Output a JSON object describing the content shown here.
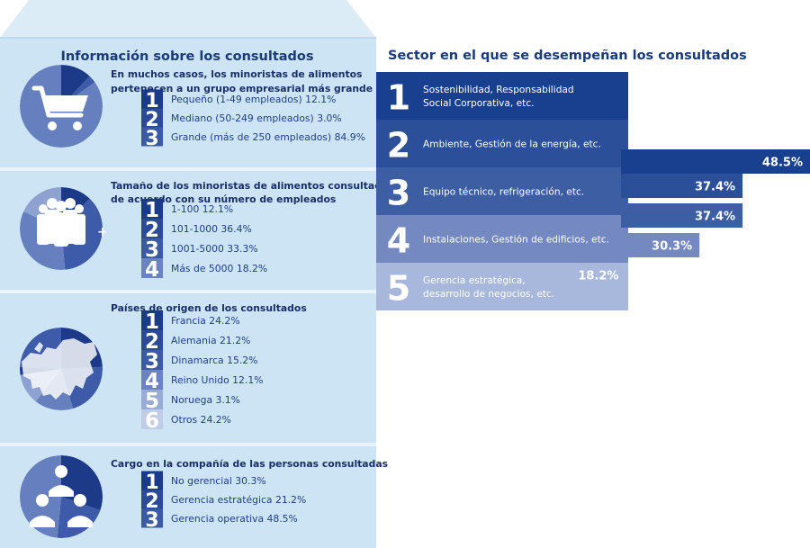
{
  "colors": {
    "panel_bg": "#cde4f4",
    "panel_top": "#dcecf7",
    "panel_side": "#b3cde6",
    "rank_colors": [
      "#1a3a8a",
      "#2b4b9a",
      "#3a5aa5",
      "#6b84bf",
      "#98abd6",
      "#c1cde7"
    ],
    "circle_slices": [
      "#1c3a88",
      "#3d5ba8",
      "#6680bf",
      "#8ea2d2"
    ],
    "step_colors": [
      "#193f8f",
      "#2c4f9a",
      "#3e5ea4",
      "#7489c2",
      "#a8b8dd"
    ],
    "bar_colors": [
      "#193f8f",
      "#2c4f9a",
      "#3e5ea4",
      "#7489c2",
      "#a8b8dd"
    ],
    "title_color": "#1a3a7a"
  },
  "left": {
    "title": "Información sobre los consultados",
    "sections": [
      {
        "icon": "shopping-cart-icon",
        "subtitle": [
          "En muchos casos, los minoristas de alimentos",
          "pertenecen a un grupo empresarial más grande"
        ],
        "slices": [
          12.1,
          3.0,
          84.9
        ],
        "items": [
          {
            "rank": "1",
            "label": "Pequeño (1-49 empleados) 12.1%"
          },
          {
            "rank": "2",
            "label": "Mediano (50-249 empleados) 3.0%"
          },
          {
            "rank": "3",
            "label": "Grande (más de 250 empleados) 84.9%"
          }
        ]
      },
      {
        "icon": "people-group-icon",
        "plus": "+",
        "subtitle": [
          "Tamaño de los minoristas de alimentos consultados,",
          "de acuerdo con su número de empleados"
        ],
        "slices": [
          12.1,
          36.4,
          33.3,
          18.2
        ],
        "items": [
          {
            "rank": "1",
            "label": "1-100 12.1%"
          },
          {
            "rank": "2",
            "label": "101-1000 36.4%"
          },
          {
            "rank": "3",
            "label": "1001-5000 33.3%"
          },
          {
            "rank": "4",
            "label": "Más de 5000 18.2%"
          }
        ]
      },
      {
        "icon": "europe-map-icon",
        "subtitle": [
          "Países de origen de los consultados"
        ],
        "slices": [
          24.2,
          21.2,
          15.2,
          12.1,
          3.1,
          24.2
        ],
        "items": [
          {
            "rank": "1",
            "label": "Francia 24.2%"
          },
          {
            "rank": "2",
            "label": "Alemania 21.2%"
          },
          {
            "rank": "3",
            "label": "Dinamarca 15.2%"
          },
          {
            "rank": "4",
            "label": "Reino Unido 12.1%"
          },
          {
            "rank": "5",
            "label": "Noruega 3.1%"
          },
          {
            "rank": "6",
            "label": "Otros 24.2%"
          }
        ]
      },
      {
        "icon": "managers-icon",
        "subtitle": [
          "Cargo en la compañía de las personas consultadas"
        ],
        "slices": [
          30.3,
          21.2,
          48.5
        ],
        "items": [
          {
            "rank": "1",
            "label": "No gerencial 30.3%"
          },
          {
            "rank": "2",
            "label": "Gerencia estratégica 21.2%"
          },
          {
            "rank": "3",
            "label": "Gerencia operativa 48.5%"
          }
        ]
      }
    ]
  },
  "chart_data": {
    "type": "bar",
    "title": "Sector en el que se desempeñan los consultados",
    "categories": [
      "Sostenibilidad, Responsabilidad Social Corporativa, etc.",
      "Ambiente, Gestión de la energía, etc.",
      "Equipo técnico, refrigeración, etc.",
      "Instalaciones, Gestión de edificios, etc.",
      "Gerencia estratégica, desarrollo de negocios, etc."
    ],
    "category_lines": [
      [
        "Sostenibilidad, Responsabilidad",
        "Social Corporativa, etc."
      ],
      [
        "Ambiente, Gestión de la energía, etc."
      ],
      [
        "Equipo técnico, refrigeración, etc."
      ],
      [
        "Instalaciones, Gestión de edificios, etc."
      ],
      [
        "Gerencia estratégica,",
        "desarrollo de negocios, etc."
      ]
    ],
    "ranks": [
      "1",
      "2",
      "3",
      "4",
      "5"
    ],
    "values": [
      48.5,
      37.4,
      37.4,
      30.3,
      18.2
    ],
    "value_labels": [
      "48.5%",
      "37.4%",
      "37.4%",
      "30.3%",
      "18.2%"
    ],
    "xlim": [
      0,
      48.5
    ],
    "grid": false,
    "legend": "none"
  }
}
